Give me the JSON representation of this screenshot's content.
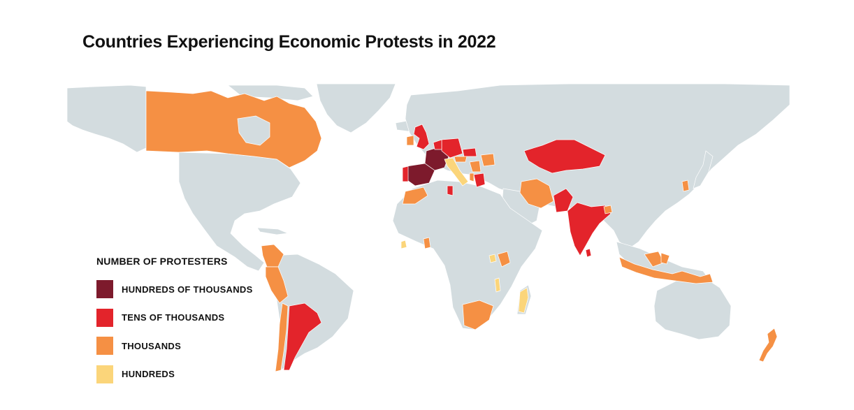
{
  "title": "Countries Experiencing Economic Protests in 2022",
  "legend": {
    "title": "NUMBER OF PROTESTERS",
    "items": [
      {
        "label": "HUNDREDS OF THOUSANDS",
        "color": "#7d1a2c"
      },
      {
        "label": "TENS OF THOUSANDS",
        "color": "#e3242b"
      },
      {
        "label": "THOUSANDS",
        "color": "#f59044"
      },
      {
        "label": "HUNDREDS",
        "color": "#fbd57a"
      }
    ]
  },
  "colors": {
    "land": "#d3dcdf",
    "background": "#ffffff"
  }
}
